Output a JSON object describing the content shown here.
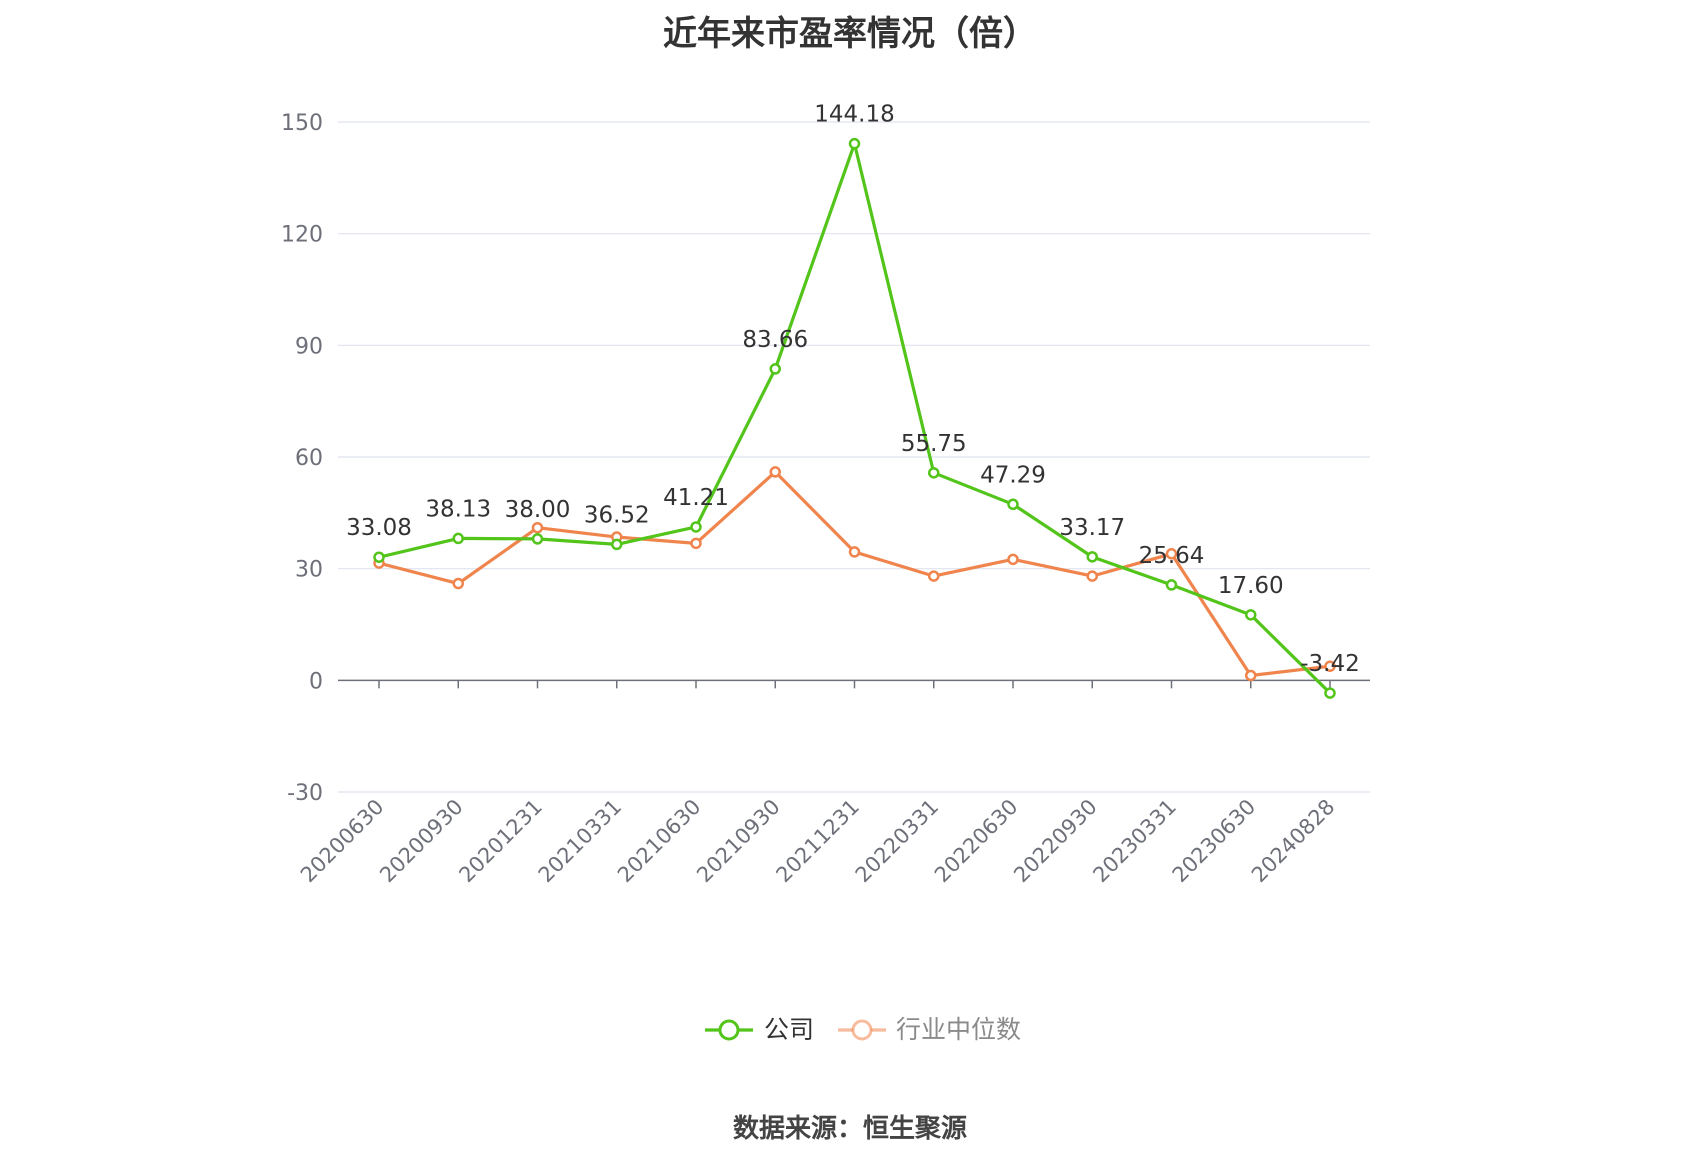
{
  "chart_data": {
    "type": "line",
    "title": "近年来市盈率情况（倍）",
    "xlabel": "",
    "ylabel": "",
    "ylim": [
      -30,
      150
    ],
    "yticks": [
      -30,
      0,
      30,
      60,
      90,
      120,
      150
    ],
    "grid": true,
    "legend_position": "bottom",
    "categories": [
      "20200630",
      "20200930",
      "20201231",
      "20210331",
      "20210630",
      "20210930",
      "20211231",
      "20220331",
      "20220630",
      "20220930",
      "20230331",
      "20230630",
      "20240828"
    ],
    "series": [
      {
        "name": "公司",
        "color": "#52c41a",
        "show_labels": true,
        "values": [
          33.08,
          38.13,
          38.0,
          36.52,
          41.21,
          83.66,
          144.18,
          55.75,
          47.29,
          33.17,
          25.64,
          17.6,
          -3.42
        ]
      },
      {
        "name": "行业中位数",
        "color": "#f0844d",
        "show_labels": false,
        "values": [
          31.5,
          26.0,
          41.0,
          38.5,
          36.8,
          56.0,
          34.5,
          28.0,
          32.5,
          28.0,
          34.0,
          1.3,
          3.8
        ]
      }
    ]
  },
  "source": "数据来源：恒生聚源"
}
